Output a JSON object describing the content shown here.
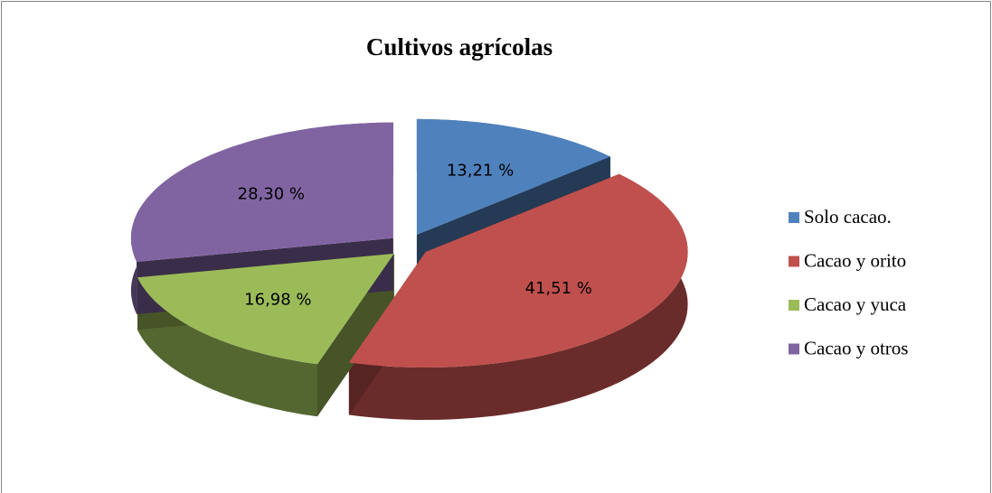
{
  "chart_data": {
    "type": "pie",
    "title": "Cultivos agrícolas",
    "categories": [
      "Solo cacao.",
      "Cacao y orito",
      "Cacao y yuca",
      "Cacao y otros"
    ],
    "values": [
      13.21,
      41.51,
      16.98,
      28.3
    ],
    "value_labels": [
      "13,21 %",
      "41,51 %",
      "16,98 %",
      "28,30 %"
    ],
    "colors": [
      "#4f81bd",
      "#c0504d",
      "#9bbb59",
      "#8064a2"
    ],
    "legend": "right"
  }
}
